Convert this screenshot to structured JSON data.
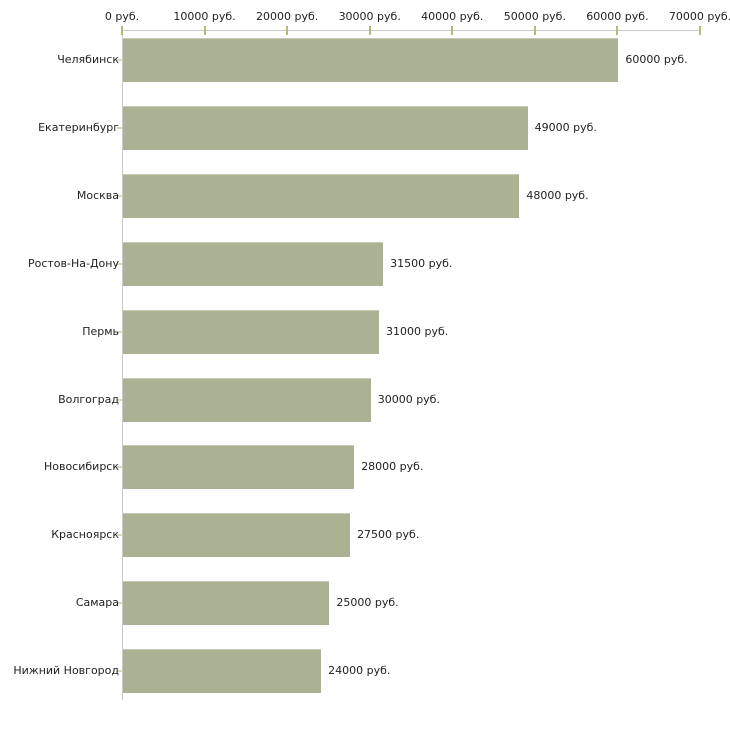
{
  "chart_data": {
    "type": "bar",
    "orientation": "horizontal",
    "title": "",
    "categories": [
      "Челябинск",
      "Екатеринбург",
      "Москва",
      "Ростов-На-Дону",
      "Пермь",
      "Волгоград",
      "Новосибирск",
      "Красноярск",
      "Самара",
      "Нижний Новгород"
    ],
    "values": [
      60000,
      49000,
      48000,
      31500,
      31000,
      30000,
      28000,
      27500,
      25000,
      24000
    ],
    "value_labels": [
      "60000 руб.",
      "49000 руб.",
      "48000 руб.",
      "31500 руб.",
      "31000 руб.",
      "30000 руб.",
      "28000 руб.",
      "27500 руб.",
      "25000 руб.",
      "24000 руб."
    ],
    "x_axis": {
      "position": "top",
      "min": 0,
      "max": 70000,
      "tick_values": [
        0,
        10000,
        20000,
        30000,
        40000,
        50000,
        60000,
        70000
      ],
      "tick_labels": [
        "0 руб.",
        "10000 руб.",
        "20000 руб.",
        "30000 руб.",
        "40000 руб.",
        "50000 руб.",
        "60000 руб.",
        "70000 руб."
      ]
    },
    "xlabel": "",
    "ylabel": "",
    "legend": null,
    "grid": false,
    "colors": {
      "bar": "#abb294",
      "bar_top_edge": "#c6cab7",
      "axis_line": "#c9c9c9",
      "x_tick": "#b9b775",
      "category_tick": "#d9d9b3",
      "text": "#1f1f1f",
      "background": "#ffffff"
    }
  }
}
